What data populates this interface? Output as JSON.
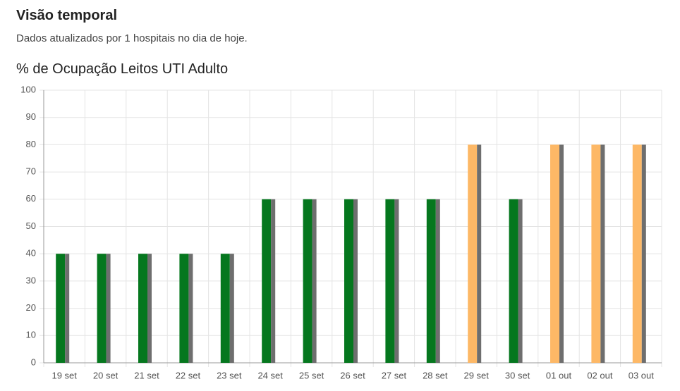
{
  "header": {
    "title": "Visão temporal",
    "subtitle": "Dados atualizados por 1 hospitais no dia de hoje."
  },
  "chart_data": {
    "type": "bar",
    "title": "% de Ocupação Leitos UTI Adulto",
    "categories": [
      "19 set",
      "20 set",
      "21 set",
      "22 set",
      "23 set",
      "24 set",
      "25 set",
      "26 set",
      "27 set",
      "28 set",
      "29 set",
      "30 set",
      "01 out",
      "02 out",
      "03 out"
    ],
    "series": [
      {
        "colors": [
          "#05771e",
          "#05771e",
          "#05771e",
          "#05771e",
          "#05771e",
          "#05771e",
          "#05771e",
          "#05771e",
          "#05771e",
          "#05771e",
          "#fdb866",
          "#05771e",
          "#fdb866",
          "#fdb866",
          "#fdb866"
        ],
        "values": [
          40,
          40,
          40,
          40,
          40,
          60,
          60,
          60,
          60,
          60,
          80,
          60,
          80,
          80,
          80
        ]
      },
      {
        "color": "#6e6e6e",
        "values": [
          40,
          40,
          40,
          40,
          40,
          60,
          60,
          60,
          60,
          60,
          80,
          60,
          80,
          80,
          80
        ]
      }
    ],
    "ylim": [
      0,
      100
    ],
    "yticks": [
      0,
      10,
      20,
      30,
      40,
      50,
      60,
      70,
      80,
      90,
      100
    ],
    "grid": true
  }
}
